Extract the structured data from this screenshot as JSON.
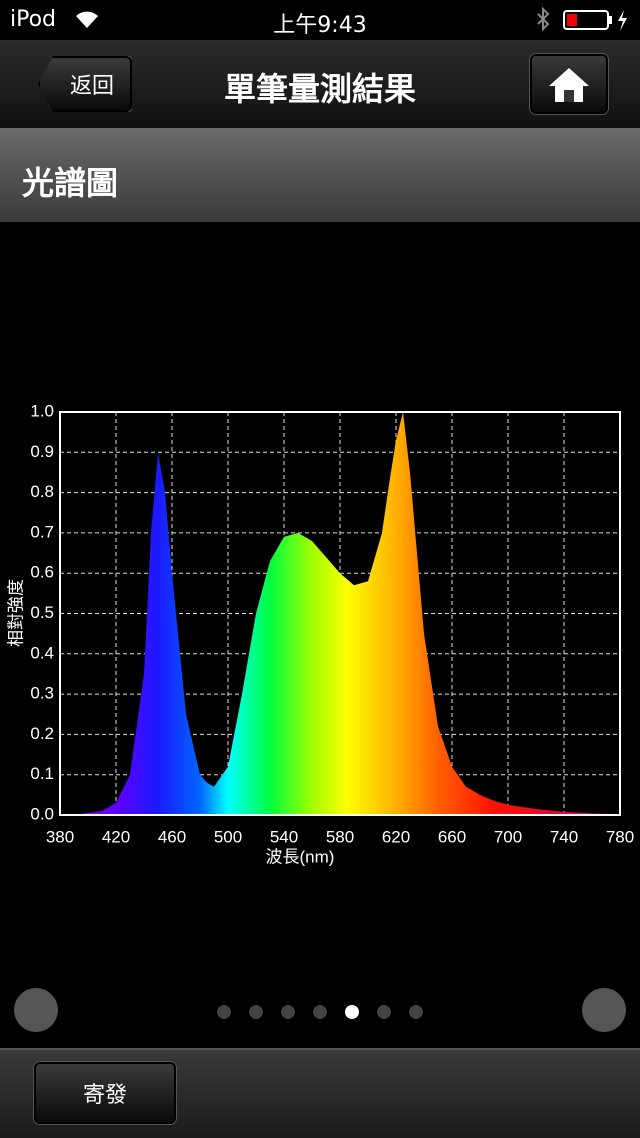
{
  "status_bar": {
    "device": "iPod",
    "time": "上午9:43"
  },
  "nav": {
    "back": "返回",
    "title": "單筆量測結果"
  },
  "section": {
    "title": "光譜圖"
  },
  "chart_data": {
    "type": "area",
    "x_label": "波長(nm)",
    "y_label": "相對強度",
    "x": [
      380,
      390,
      400,
      410,
      420,
      430,
      440,
      445,
      450,
      455,
      460,
      470,
      480,
      485,
      490,
      500,
      510,
      520,
      530,
      540,
      550,
      560,
      570,
      580,
      590,
      600,
      610,
      615,
      620,
      625,
      630,
      640,
      650,
      660,
      670,
      680,
      690,
      700,
      720,
      740,
      760,
      780
    ],
    "values": [
      0.0,
      0.0,
      0.005,
      0.01,
      0.03,
      0.1,
      0.35,
      0.7,
      0.9,
      0.8,
      0.6,
      0.25,
      0.1,
      0.08,
      0.07,
      0.12,
      0.3,
      0.5,
      0.63,
      0.69,
      0.7,
      0.68,
      0.64,
      0.6,
      0.57,
      0.58,
      0.7,
      0.82,
      0.93,
      1.0,
      0.85,
      0.45,
      0.22,
      0.12,
      0.07,
      0.05,
      0.035,
      0.025,
      0.015,
      0.008,
      0.004,
      0.002
    ],
    "gradient": [
      {
        "at": 380,
        "color": "#9a00ff"
      },
      {
        "at": 420,
        "color": "#6000ff"
      },
      {
        "at": 450,
        "color": "#1a1aff"
      },
      {
        "at": 480,
        "color": "#0066ff"
      },
      {
        "at": 500,
        "color": "#00ffff"
      },
      {
        "at": 530,
        "color": "#00ff40"
      },
      {
        "at": 560,
        "color": "#a0ff00"
      },
      {
        "at": 585,
        "color": "#ffff00"
      },
      {
        "at": 620,
        "color": "#ffb000"
      },
      {
        "at": 650,
        "color": "#ff6000"
      },
      {
        "at": 690,
        "color": "#ff1000"
      },
      {
        "at": 780,
        "color": "#c00060"
      }
    ],
    "xlim": [
      380,
      780
    ],
    "ylim": [
      0,
      1
    ],
    "xticks": [
      380,
      420,
      460,
      500,
      540,
      580,
      620,
      660,
      700,
      740,
      780
    ],
    "yticks": [
      {
        "value": 0,
        "label": "0.0"
      },
      0.1,
      0.2,
      0.3,
      0.4,
      0.5,
      0.6,
      0.7,
      0.8,
      0.9,
      {
        "value": 1,
        "label": "1.0"
      }
    ],
    "grid": true
  },
  "footer": {
    "send": "寄發"
  }
}
